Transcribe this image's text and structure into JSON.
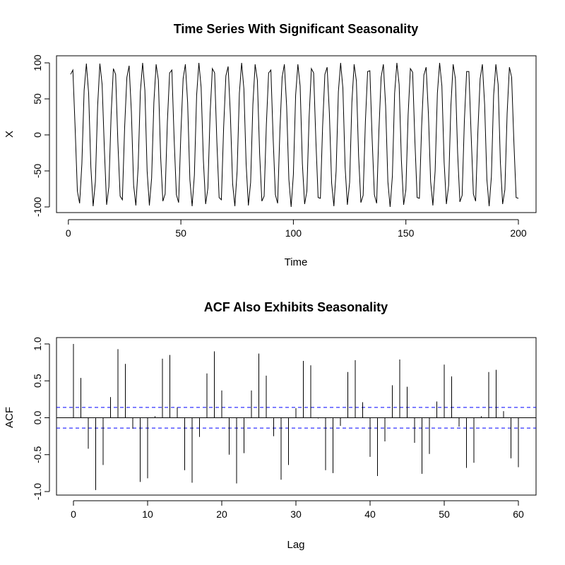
{
  "chart_data": [
    {
      "type": "line",
      "title": "Time Series With Significant Seasonality",
      "xlabel": "Time",
      "ylabel": "X",
      "xlim": [
        1,
        200
      ],
      "ylim": [
        -100,
        100
      ],
      "xticks": [
        0,
        50,
        100,
        150,
        200
      ],
      "yticks": [
        -100,
        -50,
        0,
        50,
        100
      ],
      "grid": false,
      "x": [
        1,
        2,
        3,
        4,
        5,
        6,
        7,
        8,
        9,
        10,
        11,
        12,
        13,
        14,
        15,
        16,
        17,
        18,
        19,
        20,
        21,
        22,
        23,
        24,
        25,
        26,
        27,
        28,
        29,
        30,
        31,
        32,
        33,
        34,
        35,
        36,
        37,
        38,
        39,
        40,
        41,
        42,
        43,
        44,
        45,
        46,
        47,
        48,
        49,
        50,
        51,
        52,
        53,
        54,
        55,
        56,
        57,
        58,
        59,
        60,
        61,
        62,
        63,
        64,
        65,
        66,
        67,
        68,
        69,
        70,
        71,
        72,
        73,
        74,
        75,
        76,
        77,
        78,
        79,
        80,
        81,
        82,
        83,
        84,
        85,
        86,
        87,
        88,
        89,
        90,
        91,
        92,
        93,
        94,
        95,
        96,
        97,
        98,
        99,
        100,
        101,
        102,
        103,
        104,
        105,
        106,
        107,
        108,
        109,
        110,
        111,
        112,
        113,
        114,
        115,
        116,
        117,
        118,
        119,
        120,
        121,
        122,
        123,
        124,
        125,
        126,
        127,
        128,
        129,
        130,
        131,
        132,
        133,
        134,
        135,
        136,
        137,
        138,
        139,
        140,
        141,
        142,
        143,
        144,
        145,
        146,
        147,
        148,
        149,
        150,
        151,
        152,
        153,
        154,
        155,
        156,
        157,
        158,
        159,
        160,
        161,
        162,
        163,
        164,
        165,
        166,
        167,
        168,
        169,
        170,
        171,
        172,
        173,
        174,
        175,
        176,
        177,
        178,
        179,
        180,
        181,
        182,
        183,
        184,
        185,
        186,
        187,
        188,
        189,
        190,
        191,
        192,
        193,
        194,
        195,
        196,
        197,
        198,
        199,
        200
      ],
      "values": [
        84,
        90,
        10,
        -78,
        -95,
        -40,
        62,
        99,
        58,
        -45,
        -99,
        -65,
        40,
        99,
        70,
        -20,
        -97,
        -72,
        28,
        92,
        84,
        -10,
        -85,
        -90,
        10,
        80,
        96,
        32,
        -70,
        -98,
        -45,
        60,
        100,
        62,
        -50,
        -98,
        -60,
        45,
        98,
        76,
        -30,
        -92,
        -82,
        18,
        86,
        90,
        -5,
        -83,
        -94,
        2,
        78,
        98,
        45,
        -62,
        -99,
        -56,
        55,
        100,
        66,
        -35,
        -96,
        -74,
        30,
        92,
        86,
        -10,
        -87,
        -90,
        10,
        82,
        95,
        28,
        -68,
        -99,
        -50,
        58,
        100,
        64,
        -40,
        -98,
        -66,
        42,
        98,
        76,
        -26,
        -92,
        -85,
        15,
        86,
        90,
        -4,
        -83,
        -95,
        5,
        80,
        98,
        40,
        -62,
        -100,
        -55,
        55,
        98,
        68,
        -40,
        -96,
        -78,
        25,
        92,
        86,
        -8,
        -87,
        -88,
        12,
        84,
        94,
        30,
        -67,
        -99,
        -50,
        60,
        100,
        65,
        -45,
        -97,
        -66,
        45,
        98,
        75,
        -30,
        -94,
        -84,
        18,
        88,
        89,
        -5,
        -83,
        -95,
        5,
        80,
        98,
        40,
        -65,
        -100,
        -57,
        58,
        100,
        70,
        -35,
        -97,
        -76,
        28,
        92,
        87,
        -8,
        -87,
        -88,
        12,
        83,
        94,
        30,
        -65,
        -98,
        -50,
        58,
        100,
        68,
        -38,
        -96,
        -70,
        40,
        98,
        78,
        -25,
        -93,
        -84,
        20,
        88,
        88,
        0,
        -82,
        -92,
        5,
        78,
        98,
        42,
        -62,
        -99,
        -58,
        55,
        98,
        70,
        -38,
        -96,
        -76,
        30,
        94,
        80,
        -10,
        -87,
        -88
      ],
      "series": [
        {
          "values": "see values"
        }
      ]
    },
    {
      "type": "bar",
      "title": "ACF Also Exhibits Seasonality",
      "xlabel": "Lag",
      "ylabel": "ACF",
      "xlim": [
        0,
        60
      ],
      "ylim": [
        -1.0,
        1.0
      ],
      "xticks": [
        0,
        10,
        20,
        30,
        40,
        50,
        60
      ],
      "yticks": [
        -1.0,
        -0.5,
        0.0,
        0.5,
        1.0
      ],
      "grid": false,
      "confidence_bound": 0.14,
      "lags": [
        0,
        1,
        2,
        3,
        4,
        5,
        6,
        7,
        8,
        9,
        10,
        11,
        12,
        13,
        14,
        15,
        16,
        17,
        18,
        19,
        20,
        21,
        22,
        23,
        24,
        25,
        26,
        27,
        28,
        29,
        30,
        31,
        32,
        33,
        34,
        35,
        36,
        37,
        38,
        39,
        40,
        41,
        42,
        43,
        44,
        45,
        46,
        47,
        48,
        49,
        50,
        51,
        52,
        53,
        54,
        55,
        56,
        57,
        58,
        59,
        60
      ],
      "values": [
        1.0,
        0.54,
        -0.42,
        -0.98,
        -0.64,
        0.28,
        0.93,
        0.73,
        -0.15,
        -0.87,
        -0.82,
        0.02,
        0.8,
        0.85,
        0.14,
        -0.71,
        -0.88,
        -0.26,
        0.6,
        0.9,
        0.37,
        -0.5,
        -0.89,
        -0.48,
        0.37,
        0.87,
        0.57,
        -0.25,
        -0.84,
        -0.64,
        0.13,
        0.77,
        0.71,
        -0.01,
        -0.71,
        -0.75,
        -0.11,
        0.62,
        0.78,
        0.21,
        -0.53,
        -0.79,
        -0.32,
        0.44,
        0.79,
        0.42,
        -0.34,
        -0.76,
        -0.49,
        0.22,
        0.72,
        0.56,
        -0.12,
        -0.68,
        -0.61,
        0.02,
        0.62,
        0.65,
        0.09,
        -0.55,
        -0.67
      ]
    }
  ]
}
